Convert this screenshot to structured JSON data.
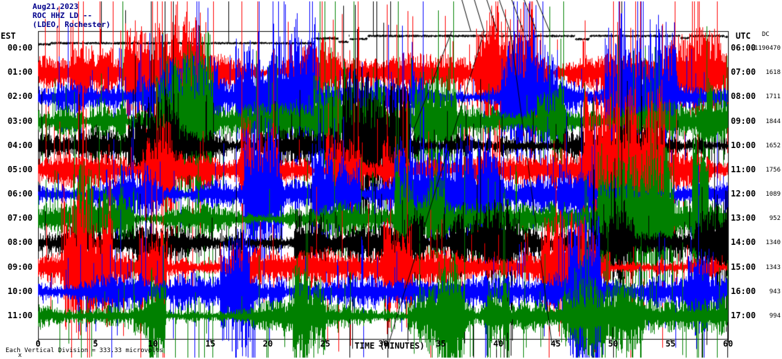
{
  "header": {
    "line1": "Aug21,2023",
    "line2": "ROC HHZ LD --",
    "line3": "(LDEO, Rochester)"
  },
  "axes": {
    "left": "EST",
    "right": "UTC",
    "dc": "DC",
    "xlabel": "TIME (MINUTES)"
  },
  "footer": {
    "scale_note": "Each Vertical Division = 333.33 microvolts",
    "corner_mark": "x"
  },
  "chart_data": {
    "type": "line",
    "subtype": "helicorder-seismogram",
    "title": "ROC HHZ LD -- (LDEO, Rochester)",
    "date": "Aug21,2023",
    "xlabel": "TIME (MINUTES)",
    "x_range": [
      0,
      60
    ],
    "minutes_per_line": 60,
    "x_ticks": [
      0,
      5,
      10,
      15,
      20,
      25,
      30,
      35,
      40,
      45,
      50,
      55,
      60
    ],
    "x_tick_labels": [
      "0",
      "5",
      "10",
      "15",
      "20",
      "25",
      "30",
      "35",
      "40",
      "45",
      "50",
      "55",
      "60"
    ],
    "left_time_zone": "EST",
    "right_time_zone": "UTC",
    "scale_note": "Each Vertical Division = 333.33 microvolts",
    "color_cycle": [
      "#000000",
      "#ff0000",
      "#0000ff",
      "#008000"
    ],
    "rows": [
      {
        "est": "00:00",
        "utc": "06:00",
        "dc": "-1190470",
        "color": "#000000",
        "activity": "quiet",
        "amp": 0.1
      },
      {
        "est": "01:00",
        "utc": "07:00",
        "dc": "1618",
        "color": "#ff0000",
        "activity": "high",
        "amp": 1.0
      },
      {
        "est": "02:00",
        "utc": "08:00",
        "dc": "1711",
        "color": "#0000ff",
        "activity": "high",
        "amp": 0.95
      },
      {
        "est": "03:00",
        "utc": "09:00",
        "dc": "1844",
        "color": "#008000",
        "activity": "high",
        "amp": 0.95
      },
      {
        "est": "04:00",
        "utc": "10:00",
        "dc": "1652",
        "color": "#000000",
        "activity": "high",
        "amp": 1.05
      },
      {
        "est": "05:00",
        "utc": "11:00",
        "dc": "1756",
        "color": "#ff0000",
        "activity": "high",
        "amp": 1.0
      },
      {
        "est": "06:00",
        "utc": "12:00",
        "dc": "1089",
        "color": "#0000ff",
        "activity": "high",
        "amp": 1.0
      },
      {
        "est": "07:00",
        "utc": "13:00",
        "dc": "952",
        "color": "#008000",
        "activity": "high",
        "amp": 0.95
      },
      {
        "est": "08:00",
        "utc": "14:00",
        "dc": "1340",
        "color": "#000000",
        "activity": "high",
        "amp": 1.05
      },
      {
        "est": "09:00",
        "utc": "15:00",
        "dc": "1343",
        "color": "#ff0000",
        "activity": "high",
        "amp": 1.0
      },
      {
        "est": "10:00",
        "utc": "16:00",
        "dc": "943",
        "color": "#0000ff",
        "activity": "high",
        "amp": 0.95
      },
      {
        "est": "11:00",
        "utc": "17:00",
        "dc": "994",
        "color": "#008000",
        "activity": "high",
        "amp": 1.0
      }
    ],
    "artifact_lines": [
      [
        667,
        0,
        680,
        46
      ],
      [
        685,
        0,
        699,
        46
      ],
      [
        703,
        0,
        718,
        46
      ],
      [
        721,
        0,
        737,
        46
      ],
      [
        739,
        0,
        756,
        46
      ],
      [
        757,
        0,
        775,
        46
      ],
      [
        775,
        0,
        794,
        46
      ],
      [
        652,
        46,
        594,
        196
      ],
      [
        699,
        46,
        561,
        497
      ],
      [
        737,
        46,
        797,
        497
      ]
    ]
  }
}
